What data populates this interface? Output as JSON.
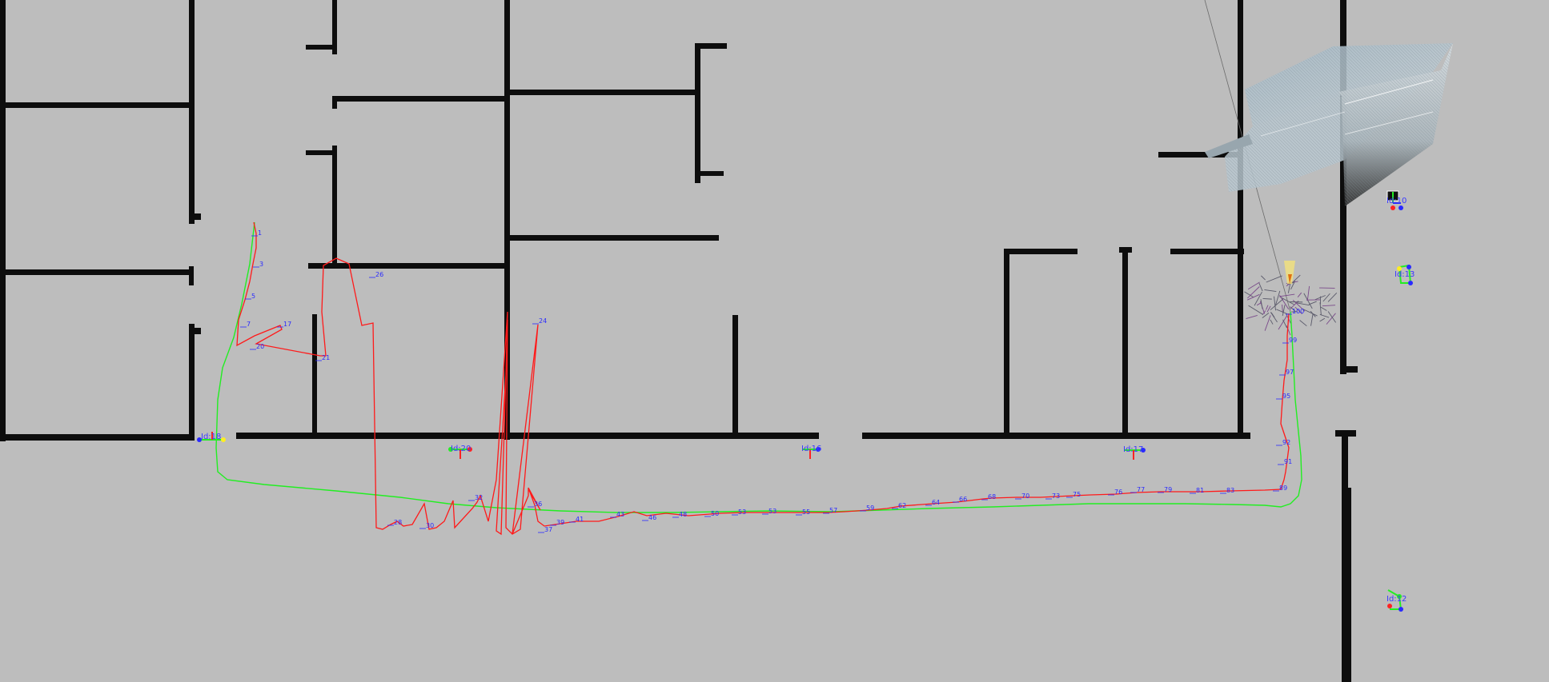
{
  "colors": {
    "background": "#bdbdbd",
    "wall": "#0d0d0d",
    "estimated_path": "#ff1a1a",
    "ground_truth_path": "#22ee22",
    "label": "#2a2aff"
  },
  "markers": [
    {
      "id": "tag-1",
      "label": "Id:18"
    },
    {
      "id": "tag-2",
      "label": "Id:20"
    },
    {
      "id": "tag-3",
      "label": "Id:16"
    },
    {
      "id": "tag-4",
      "label": "Id:17"
    },
    {
      "id": "tag-5",
      "label": "Id:10"
    },
    {
      "id": "tag-6",
      "label": "Id:13"
    },
    {
      "id": "tag-7",
      "label": "Id:12"
    }
  ],
  "pose_labels": [
    "1",
    "3",
    "5",
    "7",
    "17",
    "20",
    "21",
    "26",
    "24",
    "28",
    "30",
    "32",
    "36",
    "37",
    "39",
    "41",
    "43",
    "46",
    "48",
    "50",
    "53",
    "53",
    "55",
    "57",
    "59",
    "62",
    "64",
    "66",
    "68",
    "70",
    "73",
    "75",
    "76",
    "77",
    "79",
    "81",
    "83",
    "89",
    "91",
    "92",
    "95",
    "97",
    "99",
    "100"
  ]
}
